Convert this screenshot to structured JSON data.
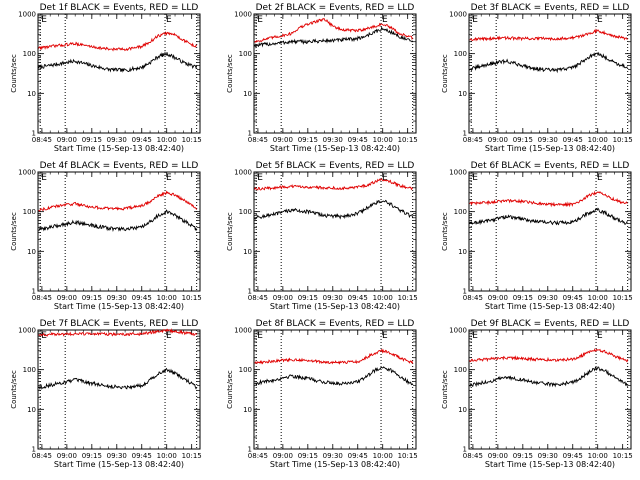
{
  "common": {
    "x_axis_label": "Start Time (15-Sep-13 08:42:40)",
    "y_axis_label": "Counts/sec",
    "x_tick_labels": [
      "08:45",
      "09:00",
      "09:15",
      "09:30",
      "09:45",
      "10:00",
      "10:15"
    ],
    "y_tick_labels": [
      "1",
      "10",
      "100",
      "1000"
    ],
    "series_colors": {
      "events": "#000000",
      "lld": "#e00000"
    },
    "marker_letter": "E"
  },
  "chart_data": [
    {
      "type": "line",
      "title": "Det 1f BLACK = Events, RED = LLD",
      "x_range_hhmm": [
        "08:42:40",
        "10:20:00"
      ],
      "ylim": [
        1,
        1000
      ],
      "y_scale": "log",
      "markers_hhmm": [
        "08:44",
        "08:59",
        "09:59",
        "10:18"
      ],
      "series": [
        {
          "name": "Events",
          "x_hhmm": [
            "08:43",
            "08:55",
            "09:05",
            "09:15",
            "09:25",
            "09:35",
            "09:45",
            "09:50",
            "09:55",
            "10:00",
            "10:05",
            "10:10",
            "10:15",
            "10:18"
          ],
          "values": [
            45,
            55,
            65,
            50,
            40,
            38,
            45,
            60,
            85,
            100,
            80,
            60,
            50,
            45
          ]
        },
        {
          "name": "LLD",
          "x_hhmm": [
            "08:43",
            "08:55",
            "09:05",
            "09:15",
            "09:25",
            "09:35",
            "09:45",
            "09:50",
            "09:55",
            "10:00",
            "10:05",
            "10:10",
            "10:15",
            "10:18"
          ],
          "values": [
            140,
            160,
            180,
            150,
            130,
            130,
            150,
            200,
            280,
            330,
            300,
            220,
            170,
            150
          ]
        }
      ]
    },
    {
      "type": "line",
      "title": "Det 2f BLACK = Events, RED = LLD",
      "x_range_hhmm": [
        "08:42:40",
        "10:20:00"
      ],
      "ylim": [
        1,
        1000
      ],
      "y_scale": "log",
      "markers_hhmm": [
        "08:44",
        "08:59",
        "09:59",
        "10:18"
      ],
      "series": [
        {
          "name": "Events",
          "x_hhmm": [
            "08:43",
            "08:55",
            "09:05",
            "09:15",
            "09:25",
            "09:35",
            "09:45",
            "09:50",
            "09:55",
            "10:00",
            "10:05",
            "10:10",
            "10:15",
            "10:18"
          ],
          "values": [
            160,
            180,
            200,
            200,
            210,
            220,
            240,
            280,
            350,
            420,
            350,
            270,
            220,
            200
          ]
        },
        {
          "name": "LLD",
          "x_hhmm": [
            "08:43",
            "08:55",
            "09:05",
            "09:10",
            "09:15",
            "09:20",
            "09:25",
            "09:30",
            "09:35",
            "09:45",
            "09:55",
            "10:00",
            "10:05",
            "10:10",
            "10:18"
          ],
          "values": [
            200,
            260,
            320,
            450,
            550,
            650,
            750,
            500,
            400,
            380,
            480,
            560,
            450,
            320,
            250
          ]
        }
      ]
    },
    {
      "type": "line",
      "title": "Det 3f BLACK = Events, RED = LLD",
      "x_range_hhmm": [
        "08:42:40",
        "10:20:00"
      ],
      "ylim": [
        1,
        1000
      ],
      "y_scale": "log",
      "markers_hhmm": [
        "08:44",
        "08:59",
        "09:59",
        "10:18"
      ],
      "series": [
        {
          "name": "Events",
          "x_hhmm": [
            "08:43",
            "08:55",
            "09:05",
            "09:15",
            "09:25",
            "09:35",
            "09:45",
            "09:50",
            "09:55",
            "10:00",
            "10:05",
            "10:10",
            "10:15",
            "10:18"
          ],
          "values": [
            40,
            55,
            65,
            50,
            40,
            38,
            45,
            60,
            85,
            100,
            80,
            60,
            50,
            45
          ]
        },
        {
          "name": "LLD",
          "x_hhmm": [
            "08:43",
            "08:55",
            "09:05",
            "09:15",
            "09:25",
            "09:35",
            "09:45",
            "09:50",
            "09:55",
            "10:00",
            "10:05",
            "10:10",
            "10:15",
            "10:18"
          ],
          "values": [
            230,
            240,
            250,
            240,
            240,
            240,
            250,
            280,
            330,
            380,
            330,
            280,
            250,
            240
          ]
        }
      ]
    },
    {
      "type": "line",
      "title": "Det 4f BLACK = Events, RED = LLD",
      "x_range_hhmm": [
        "08:42:40",
        "10:20:00"
      ],
      "ylim": [
        1,
        1000
      ],
      "y_scale": "log",
      "markers_hhmm": [
        "08:44",
        "08:59",
        "09:59",
        "10:18"
      ],
      "series": [
        {
          "name": "Events",
          "x_hhmm": [
            "08:43",
            "08:55",
            "09:05",
            "09:15",
            "09:25",
            "09:35",
            "09:45",
            "09:50",
            "09:55",
            "10:00",
            "10:05",
            "10:10",
            "10:15",
            "10:18"
          ],
          "values": [
            35,
            45,
            55,
            45,
            38,
            36,
            40,
            55,
            80,
            100,
            80,
            60,
            45,
            35
          ]
        },
        {
          "name": "LLD",
          "x_hhmm": [
            "08:43",
            "08:55",
            "09:05",
            "09:15",
            "09:25",
            "09:35",
            "09:45",
            "09:50",
            "09:55",
            "10:00",
            "10:05",
            "10:10",
            "10:15",
            "10:18"
          ],
          "values": [
            110,
            140,
            160,
            130,
            120,
            120,
            140,
            180,
            250,
            300,
            260,
            200,
            150,
            120
          ]
        }
      ]
    },
    {
      "type": "line",
      "title": "Det 5f BLACK = Events, RED = LLD",
      "x_range_hhmm": [
        "08:42:40",
        "10:20:00"
      ],
      "ylim": [
        1,
        1000
      ],
      "y_scale": "log",
      "markers_hhmm": [
        "08:44",
        "08:59",
        "09:59",
        "10:18"
      ],
      "series": [
        {
          "name": "Events",
          "x_hhmm": [
            "08:43",
            "08:55",
            "09:05",
            "09:15",
            "09:25",
            "09:35",
            "09:45",
            "09:50",
            "09:55",
            "10:00",
            "10:05",
            "10:10",
            "10:15",
            "10:18"
          ],
          "values": [
            70,
            85,
            110,
            100,
            80,
            75,
            90,
            120,
            160,
            190,
            150,
            110,
            85,
            75
          ]
        },
        {
          "name": "LLD",
          "x_hhmm": [
            "08:43",
            "08:55",
            "09:05",
            "09:15",
            "09:25",
            "09:35",
            "09:45",
            "09:50",
            "09:55",
            "10:00",
            "10:05",
            "10:10",
            "10:15",
            "10:18"
          ],
          "values": [
            370,
            400,
            430,
            420,
            400,
            390,
            410,
            460,
            560,
            650,
            560,
            460,
            400,
            380
          ]
        }
      ]
    },
    {
      "type": "line",
      "title": "Det 6f BLACK = Events, RED = LLD",
      "x_range_hhmm": [
        "08:42:40",
        "10:20:00"
      ],
      "ylim": [
        1,
        1000
      ],
      "y_scale": "log",
      "markers_hhmm": [
        "08:44",
        "08:59",
        "09:59",
        "10:18"
      ],
      "series": [
        {
          "name": "Events",
          "x_hhmm": [
            "08:43",
            "08:55",
            "09:05",
            "09:15",
            "09:25",
            "09:35",
            "09:45",
            "09:50",
            "09:55",
            "10:00",
            "10:05",
            "10:10",
            "10:15",
            "10:18"
          ],
          "values": [
            50,
            60,
            75,
            65,
            55,
            52,
            55,
            70,
            95,
            110,
            90,
            70,
            55,
            50
          ]
        },
        {
          "name": "LLD",
          "x_hhmm": [
            "08:43",
            "08:55",
            "09:05",
            "09:15",
            "09:25",
            "09:35",
            "09:45",
            "09:50",
            "09:55",
            "10:00",
            "10:05",
            "10:10",
            "10:15",
            "10:18"
          ],
          "values": [
            160,
            170,
            190,
            180,
            160,
            150,
            155,
            190,
            260,
            310,
            260,
            200,
            170,
            160
          ]
        }
      ]
    },
    {
      "type": "line",
      "title": "Det 7f BLACK = Events, RED = LLD",
      "x_range_hhmm": [
        "08:42:40",
        "10:20:00"
      ],
      "ylim": [
        1,
        1000
      ],
      "y_scale": "log",
      "markers_hhmm": [
        "08:44",
        "08:59",
        "09:59",
        "10:18"
      ],
      "series": [
        {
          "name": "Events",
          "x_hhmm": [
            "08:43",
            "08:55",
            "09:05",
            "09:15",
            "09:25",
            "09:35",
            "09:45",
            "09:50",
            "09:55",
            "10:00",
            "10:05",
            "10:10",
            "10:15",
            "10:18"
          ],
          "values": [
            35,
            45,
            55,
            45,
            38,
            36,
            40,
            55,
            80,
            100,
            80,
            60,
            45,
            35
          ]
        },
        {
          "name": "LLD",
          "x_hhmm": [
            "08:43",
            "08:55",
            "09:05",
            "09:15",
            "09:25",
            "09:35",
            "09:45",
            "09:50",
            "09:55",
            "10:00",
            "10:05",
            "10:10",
            "10:15",
            "10:18"
          ],
          "values": [
            750,
            780,
            800,
            800,
            780,
            780,
            800,
            850,
            920,
            980,
            920,
            850,
            800,
            780
          ]
        }
      ]
    },
    {
      "type": "line",
      "title": "Det 8f BLACK = Events, RED = LLD",
      "x_range_hhmm": [
        "08:42:40",
        "10:20:00"
      ],
      "ylim": [
        1,
        1000
      ],
      "y_scale": "log",
      "markers_hhmm": [
        "08:44",
        "08:59",
        "09:59",
        "10:18"
      ],
      "series": [
        {
          "name": "Events",
          "x_hhmm": [
            "08:43",
            "08:55",
            "09:05",
            "09:15",
            "09:25",
            "09:35",
            "09:45",
            "09:50",
            "09:55",
            "10:00",
            "10:05",
            "10:10",
            "10:15",
            "10:18"
          ],
          "values": [
            45,
            55,
            70,
            60,
            48,
            45,
            50,
            65,
            95,
            120,
            95,
            70,
            50,
            45
          ]
        },
        {
          "name": "LLD",
          "x_hhmm": [
            "08:43",
            "08:55",
            "09:05",
            "09:15",
            "09:25",
            "09:35",
            "09:45",
            "09:50",
            "09:55",
            "10:00",
            "10:05",
            "10:10",
            "10:15",
            "10:18"
          ],
          "values": [
            150,
            165,
            180,
            170,
            155,
            150,
            160,
            200,
            260,
            300,
            260,
            200,
            165,
            150
          ]
        }
      ]
    },
    {
      "type": "line",
      "title": "Det 9f BLACK = Events, RED = LLD",
      "x_range_hhmm": [
        "08:42:40",
        "10:20:00"
      ],
      "ylim": [
        1,
        1000
      ],
      "y_scale": "log",
      "markers_hhmm": [
        "08:44",
        "08:59",
        "09:59",
        "10:18"
      ],
      "series": [
        {
          "name": "Events",
          "x_hhmm": [
            "08:43",
            "08:55",
            "09:05",
            "09:15",
            "09:25",
            "09:35",
            "09:45",
            "09:50",
            "09:55",
            "10:00",
            "10:05",
            "10:10",
            "10:15",
            "10:18"
          ],
          "values": [
            40,
            50,
            65,
            55,
            45,
            42,
            48,
            62,
            90,
            110,
            90,
            65,
            48,
            40
          ]
        },
        {
          "name": "LLD",
          "x_hhmm": [
            "08:43",
            "08:55",
            "09:05",
            "09:15",
            "09:25",
            "09:35",
            "09:45",
            "09:50",
            "09:55",
            "10:00",
            "10:05",
            "10:10",
            "10:15",
            "10:18"
          ],
          "values": [
            170,
            185,
            200,
            190,
            180,
            175,
            185,
            220,
            280,
            320,
            280,
            220,
            185,
            170
          ]
        }
      ]
    }
  ]
}
